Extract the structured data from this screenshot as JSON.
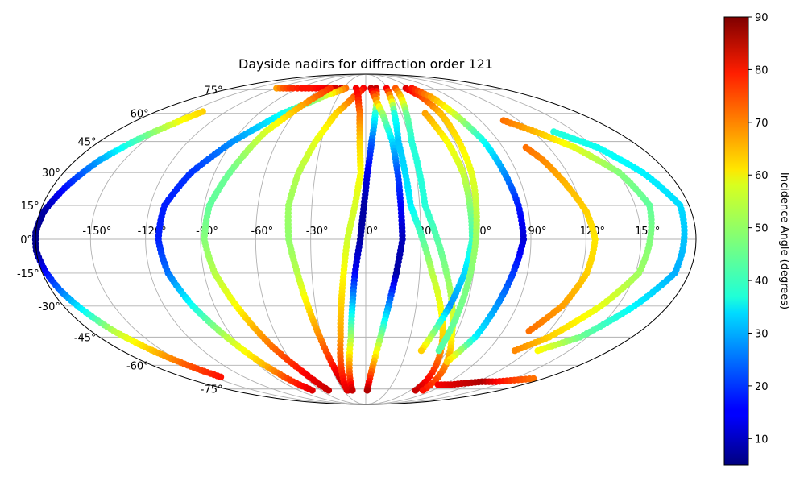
{
  "chart_data": {
    "type": "scatter",
    "projection": "mollweide",
    "title": "Dayside nadirs for diffraction order 121",
    "xlabel": "",
    "ylabel": "",
    "grid": true,
    "lon_ticks": [
      -150,
      -120,
      -90,
      -60,
      -30,
      0,
      30,
      60,
      90,
      120,
      150
    ],
    "lat_ticks": [
      -75,
      -60,
      -45,
      -30,
      -15,
      0,
      15,
      30,
      45,
      60,
      75
    ],
    "lon_tick_labels": [
      "-150°",
      "-120°",
      "-90°",
      "-60°",
      "-30°",
      "0°",
      "30°",
      "60°",
      "90°",
      "120°",
      "150°"
    ],
    "lat_tick_labels": [
      "-75°",
      "-60°",
      "-45°",
      "-30°",
      "-15°",
      "0°",
      "15°",
      "30°",
      "45°",
      "60°",
      "75°"
    ],
    "colorbar": {
      "label": "Incidence Angle (degrees)",
      "colormap": "jet",
      "range": [
        5,
        90
      ],
      "ticks": [
        10,
        20,
        30,
        40,
        50,
        60,
        70,
        80,
        90
      ],
      "tick_labels": [
        "10",
        "20",
        "30",
        "40",
        "50",
        "60",
        "70",
        "80",
        "90"
      ]
    },
    "tracks": [
      {
        "lon": [
          -140,
          -145,
          -155,
          -165,
          -172,
          -178,
          -180,
          -180,
          -178,
          -175,
          -170,
          -165,
          -158,
          -150,
          -143
        ],
        "lat": [
          61,
          56,
          47,
          36,
          24,
          12,
          3,
          -5,
          -14,
          -23,
          -33,
          -42,
          -51,
          -60,
          -67
        ],
        "inc": [
          62,
          58,
          45,
          30,
          18,
          8,
          6,
          6,
          15,
          25,
          38,
          52,
          62,
          72,
          78
        ]
      },
      {
        "lon": [
          -120,
          -111,
          -98,
          -86,
          -72,
          -58,
          -48,
          -40,
          -33,
          -27
        ],
        "lat": [
          76,
          76,
          76,
          76,
          76,
          76,
          76,
          76,
          76,
          76
        ],
        "inc": [
          66,
          72,
          76,
          78,
          78,
          80,
          82,
          83,
          84,
          85
        ]
      },
      {
        "lon": [
          -27,
          -47,
          -70,
          -90,
          -104,
          -112,
          -113,
          -110,
          -103,
          -94,
          -85,
          -78,
          -72
        ],
        "lat": [
          76,
          70,
          60,
          45,
          30,
          15,
          0,
          -15,
          -30,
          -45,
          -60,
          -70,
          -76
        ],
        "inc": [
          70,
          52,
          38,
          28,
          20,
          18,
          18,
          25,
          38,
          52,
          64,
          76,
          82
        ]
      },
      {
        "lon": [
          -48,
          -59,
          -72,
          -81,
          -87,
          -88,
          -84,
          -77,
          -67,
          -56,
          -50
        ],
        "lat": [
          76,
          65,
          50,
          30,
          15,
          0,
          -15,
          -30,
          -50,
          -66,
          -76
        ],
        "inc": [
          76,
          66,
          55,
          46,
          45,
          48,
          52,
          58,
          70,
          80,
          84
        ]
      },
      {
        "lon": [
          -3,
          -13,
          -25,
          -34,
          -40,
          -43,
          -42,
          -38,
          -31,
          -24
        ],
        "lat": [
          76,
          70,
          60,
          45,
          30,
          15,
          0,
          -15,
          -45,
          -76
        ],
        "inc": [
          80,
          72,
          62,
          56,
          52,
          50,
          49,
          52,
          68,
          88
        ]
      },
      {
        "lon": [
          -13,
          -8,
          -5,
          -4,
          -3,
          -6,
          -10,
          -17,
          -25
        ],
        "lat": [
          76,
          70,
          60,
          45,
          30,
          15,
          0,
          -45,
          -76
        ],
        "inc": [
          80,
          78,
          70,
          62,
          58,
          55,
          54,
          66,
          82
        ]
      },
      {
        "lon": [
          14,
          8,
          4,
          1,
          -1,
          -3,
          -6,
          -10,
          -18
        ],
        "lat": [
          76,
          60,
          45,
          30,
          15,
          0,
          -15,
          -45,
          -76
        ],
        "inc": [
          84,
          40,
          24,
          14,
          8,
          8,
          15,
          50,
          84
        ]
      },
      {
        "lon": [
          7,
          14,
          18,
          19,
          20,
          17,
          10,
          2
        ],
        "lat": [
          76,
          60,
          45,
          30,
          0,
          -15,
          -45,
          -76
        ],
        "inc": [
          84,
          50,
          34,
          22,
          10,
          8,
          48,
          86
        ]
      },
      {
        "lon": [
          28,
          24,
          22,
          25,
          37,
          52,
          67
        ],
        "lat": [
          76,
          60,
          45,
          15,
          -15,
          -45,
          -76
        ],
        "inc": [
          80,
          40,
          32,
          36,
          52,
          62,
          84
        ]
      },
      {
        "lon": [
          40,
          34,
          31,
          33,
          45,
          58,
          77
        ],
        "lat": [
          76,
          60,
          45,
          15,
          -15,
          -45,
          -76
        ],
        "inc": [
          72,
          46,
          40,
          40,
          48,
          58,
          78
        ]
      },
      {
        "lon": [
          50,
          55,
          58,
          58,
          55,
          50,
          41
        ],
        "lat": [
          60,
          45,
          30,
          0,
          -15,
          -30,
          -52
        ],
        "inc": [
          66,
          58,
          54,
          42,
          34,
          28,
          62
        ]
      },
      {
        "lon": [
          54,
          60,
          63,
          63,
          60,
          54
        ],
        "lat": [
          76,
          70,
          60,
          30,
          0,
          -52
        ],
        "inc": [
          82,
          74,
          64,
          56,
          50,
          44
        ]
      },
      {
        "lon": [
          62,
          70,
          80,
          85,
          86,
          82,
          74,
          66
        ],
        "lat": [
          76,
          70,
          45,
          15,
          0,
          -15,
          -45,
          -58
        ],
        "inc": [
          78,
          66,
          38,
          18,
          12,
          20,
          36,
          62
        ]
      },
      {
        "lon": [
          105,
          110,
          116,
          122,
          125,
          123,
          117,
          107
        ],
        "lat": [
          42,
          36,
          24,
          12,
          0,
          -15,
          -30,
          -42
        ],
        "inc": [
          70,
          68,
          64,
          62,
          60,
          62,
          66,
          70
        ]
      },
      {
        "lon": [
          108,
          122,
          137,
          151,
          158,
          152,
          140,
          124,
          110
        ],
        "lat": [
          56,
          50,
          42,
          30,
          15,
          -15,
          -30,
          -45,
          -52
        ],
        "inc": [
          70,
          64,
          56,
          48,
          45,
          50,
          56,
          62,
          68
        ]
      },
      {
        "lon": [
          135,
          152,
          165,
          175,
          172,
          160,
          145,
          127
        ],
        "lat": [
          50,
          42,
          30,
          15,
          -15,
          -30,
          -45,
          -52
        ],
        "inc": [
          40,
          38,
          36,
          34,
          30,
          36,
          46,
          58
        ]
      },
      {
        "lon": [
          83,
          98,
          110,
          125,
          140,
          155,
          170
        ],
        "lat": [
          -72,
          -72,
          -71,
          -70,
          -70,
          -69,
          -68
        ],
        "inc": [
          80,
          82,
          84,
          86,
          80,
          74,
          70
        ]
      }
    ]
  }
}
